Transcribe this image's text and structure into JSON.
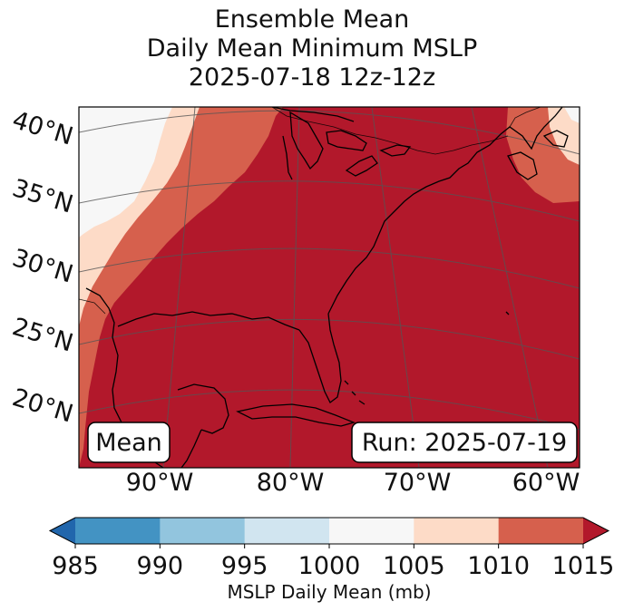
{
  "title": {
    "line1": "Ensemble Mean",
    "line2": "Daily Mean Minimum MSLP",
    "line3": "2025-07-18 12z-12z"
  },
  "map": {
    "lat_labels": [
      "40°N",
      "35°N",
      "30°N",
      "25°N",
      "20°N"
    ],
    "lon_labels": [
      "90°W",
      "80°W",
      "70°W",
      "60°W"
    ],
    "label_left": "Mean",
    "label_right": "Run: 2025-07-19",
    "contour_color": "#000000",
    "field_colors": {
      "1000-1005": "#f7f7f7",
      "1005-1010": "#fddbc7",
      "1010-1015": "#d6604d",
      "above-1015": "#b2182b"
    }
  },
  "colorbar": {
    "title": "MSLP Daily Mean (mb)",
    "ticks": [
      "985",
      "990",
      "995",
      "1000",
      "1005",
      "1010",
      "1015"
    ],
    "bins": [
      {
        "range": "below 985",
        "color": "#2166ac"
      },
      {
        "range": "985-990",
        "color": "#4393c3"
      },
      {
        "range": "990-995",
        "color": "#92c5de"
      },
      {
        "range": "995-1000",
        "color": "#d1e5f0"
      },
      {
        "range": "1000-1005",
        "color": "#f7f7f7"
      },
      {
        "range": "1005-1010",
        "color": "#fddbc7"
      },
      {
        "range": "1010-1015",
        "color": "#d6604d"
      },
      {
        "range": "above 1015",
        "color": "#b2182b"
      }
    ]
  }
}
